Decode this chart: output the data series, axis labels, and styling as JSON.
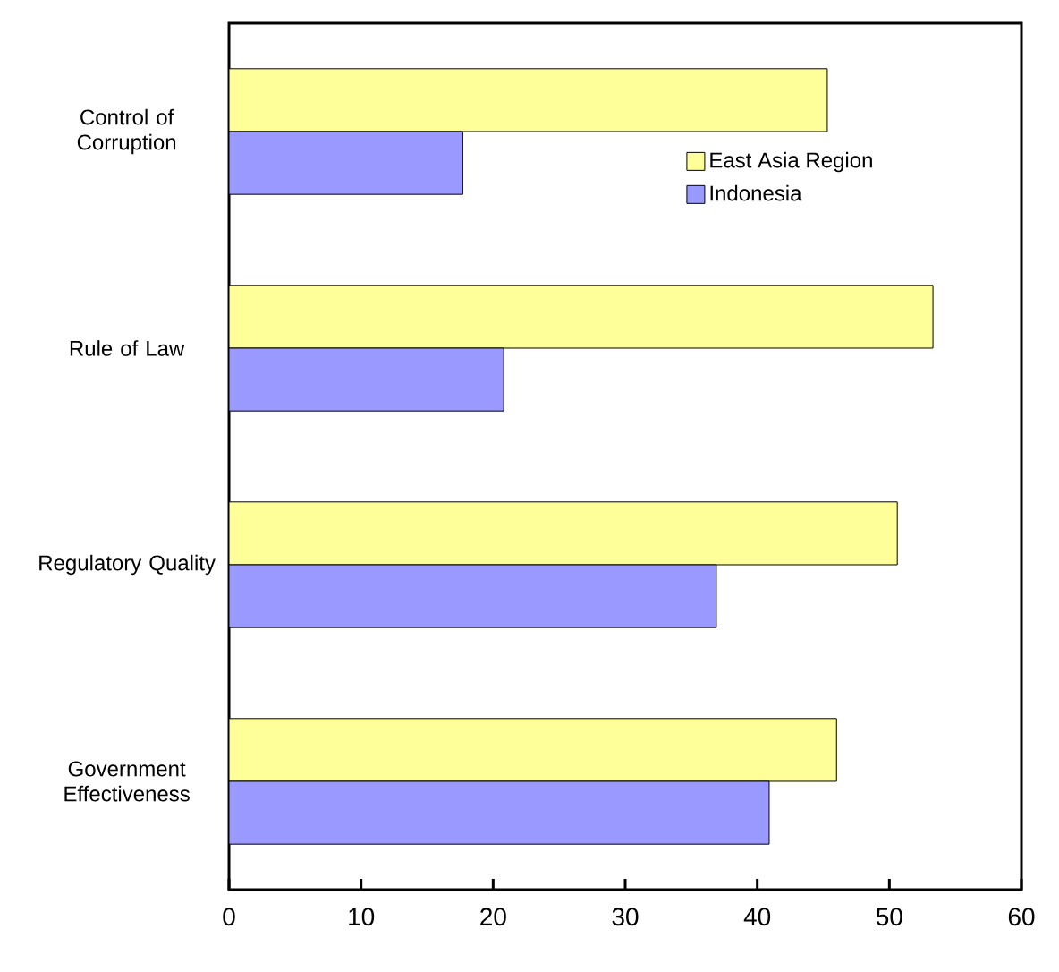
{
  "chart_data": {
    "type": "bar",
    "orientation": "horizontal",
    "categories": [
      "Control of Corruption",
      "Rule of Law",
      "Regulatory Quality",
      "Government Effectiveness"
    ],
    "series": [
      {
        "name": "East Asia Region",
        "color": "#ffff99",
        "values": [
          45.3,
          53.3,
          50.6,
          46.0
        ]
      },
      {
        "name": "Indonesia",
        "color": "#9999ff",
        "values": [
          17.7,
          20.8,
          36.9,
          40.9
        ]
      }
    ],
    "xlim": [
      0,
      60
    ],
    "xticks": [
      0,
      10,
      20,
      30,
      40,
      50,
      60
    ],
    "grid": false,
    "legend": "top right"
  }
}
